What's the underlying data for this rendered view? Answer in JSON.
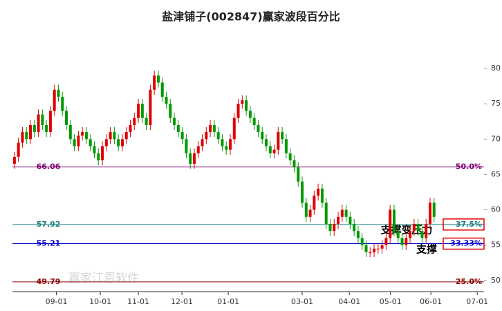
{
  "chart_data": {
    "type": "candlestick",
    "title": "盐津铺子(002847)赢家波段百分比",
    "up_color": "#e00000",
    "down_color": "#009900",
    "open": [
      66.5,
      67.5,
      69.5,
      71,
      70,
      72,
      71,
      73.5,
      72,
      71,
      74,
      77,
      76,
      74,
      72,
      70,
      69,
      70.5,
      71,
      70,
      69,
      68,
      67,
      69,
      70,
      71,
      70,
      69,
      70,
      71,
      72,
      73,
      75,
      73,
      72,
      77,
      79,
      78,
      76,
      75,
      73,
      72,
      71,
      70,
      68,
      66.5,
      68,
      69,
      70,
      71,
      72,
      71,
      70,
      69,
      68.5,
      70,
      73,
      75,
      75.5,
      74,
      73,
      72,
      71,
      70,
      69,
      68,
      68.5,
      71,
      70,
      68,
      67,
      66,
      64,
      61,
      59,
      60,
      62,
      63,
      61,
      58,
      57,
      58,
      59,
      60,
      59,
      58,
      57,
      56,
      55,
      54,
      54,
      54.5,
      54.5,
      55,
      56,
      60,
      57,
      56,
      55,
      56,
      57,
      58,
      57,
      56,
      58,
      61
    ],
    "high": [
      68.2,
      70.2,
      71.7,
      71.7,
      72.7,
      72.7,
      74.2,
      74.2,
      72.7,
      74.7,
      77.7,
      77.7,
      76.7,
      74.7,
      72.7,
      70.7,
      71.2,
      71.7,
      71.7,
      70.7,
      69.7,
      68.7,
      69.7,
      70.7,
      71.7,
      71.7,
      70.7,
      70.7,
      71.7,
      72.7,
      73.7,
      75.7,
      75.7,
      73.7,
      77.7,
      79.7,
      79.7,
      78.7,
      76.7,
      75.7,
      73.7,
      72.7,
      71.7,
      70.7,
      68.7,
      68.7,
      69.7,
      70.7,
      71.7,
      72.7,
      72.7,
      71.7,
      70.7,
      69.7,
      70.7,
      73.7,
      75.7,
      76.2,
      76.2,
      74.7,
      73.7,
      72.7,
      71.7,
      70.7,
      69.7,
      69.2,
      71.7,
      71.7,
      70.7,
      68.7,
      67.7,
      66.7,
      64.7,
      61.7,
      60.7,
      62.7,
      63.7,
      63.7,
      61.7,
      58.7,
      58.7,
      59.7,
      60.7,
      60.7,
      59.7,
      58.7,
      57.7,
      56.7,
      55.7,
      54.7,
      55.2,
      55.2,
      55.7,
      56.7,
      60.7,
      60.7,
      57.7,
      56.7,
      56.7,
      57.7,
      58.7,
      58.7,
      57.7,
      58.7,
      61.7,
      61.7
    ],
    "low": [
      65.8,
      66.8,
      68.8,
      69.3,
      69.3,
      70.3,
      70.3,
      71.3,
      70.3,
      70.3,
      73.3,
      75.3,
      73.3,
      71.3,
      69.3,
      68.3,
      68.3,
      69.8,
      69.3,
      68.3,
      67.3,
      66.3,
      66.3,
      68.3,
      69.3,
      69.3,
      68.3,
      68.3,
      69.3,
      70.3,
      71.3,
      72.3,
      72.3,
      71.3,
      71.3,
      76.3,
      77.3,
      75.3,
      74.3,
      72.3,
      71.3,
      70.3,
      69.3,
      67.3,
      65.8,
      65.8,
      67.3,
      68.3,
      69.3,
      70.3,
      70.3,
      69.3,
      68.3,
      67.8,
      67.8,
      69.3,
      72.3,
      74.3,
      73.3,
      72.3,
      71.3,
      70.3,
      69.3,
      68.3,
      67.3,
      67.3,
      67.8,
      69.3,
      67.3,
      66.3,
      65.3,
      63.3,
      60.3,
      58.3,
      58.3,
      59.3,
      61.3,
      60.3,
      57.3,
      56.3,
      56.3,
      57.3,
      58.3,
      58.3,
      57.3,
      56.3,
      55.3,
      54.3,
      53.3,
      53.3,
      53.3,
      53.8,
      53.8,
      54.3,
      55.3,
      56.3,
      55.3,
      54.3,
      54.3,
      55.3,
      56.3,
      56.3,
      55.3,
      55.3,
      57.3,
      58.3
    ],
    "close": [
      67.5,
      69.5,
      71,
      70,
      72,
      71,
      73.5,
      72,
      71,
      74,
      77,
      76,
      74,
      72,
      70,
      69,
      70.5,
      71,
      70,
      69,
      68,
      67,
      69,
      70,
      71,
      70,
      69,
      70,
      71,
      72,
      73,
      75,
      73,
      72,
      77,
      79,
      78,
      76,
      75,
      73,
      72,
      71,
      70,
      68,
      66.5,
      68,
      69,
      70,
      71,
      72,
      71,
      70,
      69,
      68.5,
      70,
      73,
      75,
      75.5,
      74,
      73,
      72,
      71,
      70,
      69,
      68,
      68.5,
      71,
      70,
      68,
      67,
      66,
      64,
      61,
      59,
      60,
      62,
      63,
      61,
      58,
      57,
      58,
      59,
      60,
      59,
      58,
      57,
      56,
      55,
      54,
      54,
      54.5,
      54.5,
      55,
      56,
      60,
      57,
      56,
      55,
      56,
      57,
      58,
      57,
      56,
      58,
      61,
      59
    ],
    "xlim": [
      0,
      118
    ],
    "xticks": [
      {
        "value": 11,
        "label": "09-01"
      },
      {
        "value": 22,
        "label": "10-01"
      },
      {
        "value": 31.5,
        "label": "11-01"
      },
      {
        "value": 42.4,
        "label": "12-01"
      },
      {
        "value": 54,
        "label": "01-01"
      },
      {
        "value": 72.5,
        "label": "03-01"
      },
      {
        "value": 84.3,
        "label": "04-01"
      },
      {
        "value": 94.6,
        "label": "05-01"
      },
      {
        "value": 104.7,
        "label": "06-01"
      },
      {
        "value": 116.3,
        "label": "07-01"
      }
    ],
    "ylim": [
      49,
      85
    ],
    "yticks": [
      50,
      55,
      60,
      65,
      70,
      75,
      80
    ],
    "levels": [
      {
        "value": 66.06,
        "label": "50.0%",
        "color": "#800070",
        "boxed": false
      },
      {
        "value": 57.92,
        "label": "37.5%",
        "color": "#208080",
        "boxed": true
      },
      {
        "value": 55.21,
        "label": "33.33%",
        "color": "#0000cc",
        "boxed": true
      },
      {
        "value": 49.79,
        "label": "25.0%",
        "color": "#8b0000",
        "boxed": false
      }
    ],
    "annotations": [
      "支撑变压力",
      "支撑"
    ],
    "watermark": "赢家江恩软件"
  }
}
